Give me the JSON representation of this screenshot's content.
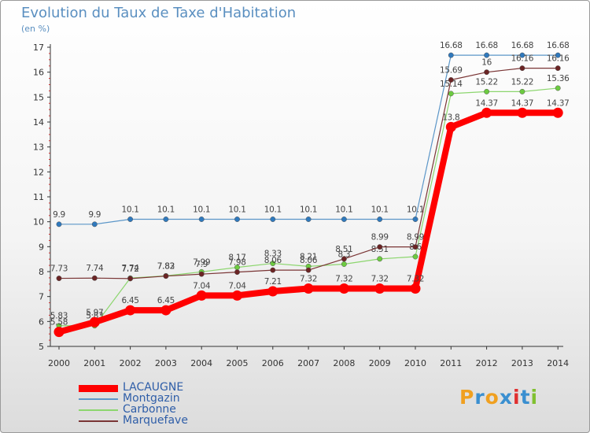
{
  "chart_data": {
    "type": "line",
    "title": "Evolution du Taux de Taxe d'Habitation",
    "ylabel": "(en %)",
    "xlabel": "",
    "ylim": [
      5,
      17
    ],
    "yticks": [
      5,
      6,
      7,
      8,
      9,
      10,
      11,
      12,
      13,
      14,
      15,
      16,
      17
    ],
    "categories": [
      "2000",
      "2001",
      "2002",
      "2003",
      "2004",
      "2005",
      "2006",
      "2007",
      "2008",
      "2009",
      "2010",
      "2011",
      "2012",
      "2013",
      "2014"
    ],
    "series": [
      {
        "name": "Montgazin",
        "color": "#5b96c8",
        "marker": "#2f79bd",
        "width": 1.2,
        "values": [
          9.9,
          9.9,
          10.1,
          10.1,
          10.1,
          10.1,
          10.1,
          10.1,
          10.1,
          10.1,
          10.1,
          16.68,
          16.68,
          16.68,
          16.68
        ],
        "labels": [
          "9.9",
          "9.9",
          "10.1",
          "10.1",
          "10.1",
          "10.1",
          "10.1",
          "10.1",
          "10.1",
          "10.1",
          "10.1",
          "16.68",
          "16.68",
          "16.68",
          "16.68"
        ]
      },
      {
        "name": "Carbonne",
        "color": "#8cd66e",
        "marker": "#6ccb40",
        "width": 1.2,
        "values": [
          5.83,
          5.83,
          7.74,
          7.83,
          7.99,
          8.17,
          8.33,
          8.21,
          8.3,
          8.51,
          8.6,
          15.14,
          15.22,
          15.22,
          15.36
        ],
        "labels": [
          "5.83",
          "5.83",
          "7.74",
          "7.83",
          "7.99",
          "8.17",
          "8.33",
          "8.21",
          "8.3",
          "8.51",
          "8.6",
          "15.14",
          "15.22",
          "15.22",
          "15.36"
        ]
      },
      {
        "name": "Marquefave",
        "color": "#7a3535",
        "marker": "#6b2424",
        "width": 1.2,
        "values": [
          7.73,
          7.74,
          7.72,
          7.82,
          7.9,
          7.98,
          8.06,
          8.06,
          8.51,
          8.99,
          8.99,
          15.69,
          16.0,
          16.16,
          16.16
        ],
        "labels": [
          "7.73",
          "7.74",
          "7.72",
          "7.82",
          "7.9",
          "7.98",
          "8.06",
          "8.06",
          "8.51",
          "8.99",
          "8.99",
          "15.69",
          "16",
          "16.16",
          "16.16"
        ]
      },
      {
        "name": "LACAUGNE",
        "color": "#ff0000",
        "marker": "#ff0000",
        "width": 8,
        "values": [
          5.58,
          5.97,
          6.45,
          6.45,
          7.04,
          7.04,
          7.21,
          7.32,
          7.32,
          7.32,
          7.32,
          13.8,
          14.37,
          14.37,
          14.37
        ],
        "labels": [
          "5.58",
          "5.97",
          "6.45",
          "6.45",
          "7.04",
          "7.04",
          "7.21",
          "7.32",
          "7.32",
          "7.32",
          "7.32",
          "13.8",
          "14.37",
          "14.37",
          "14.37"
        ]
      }
    ],
    "legend": [
      "LACAUGNE",
      "Montgazin",
      "Carbonne",
      "Marquefave"
    ],
    "legend_position": "bottom-left",
    "grid": false
  },
  "legend_colors": {
    "LACAUGNE": "#ff0000",
    "Montgazin": "#5b96c8",
    "Carbonne": "#8cd66e",
    "Marquefave": "#7a3535"
  },
  "brand": {
    "letters": [
      "P",
      "r",
      "o",
      "x",
      "i",
      "t",
      "i"
    ],
    "colors": [
      "#f0a020",
      "#3a8fd0",
      "#f0a020",
      "#3a8fd0",
      "#e03030",
      "#3a8fd0",
      "#80c030"
    ]
  }
}
